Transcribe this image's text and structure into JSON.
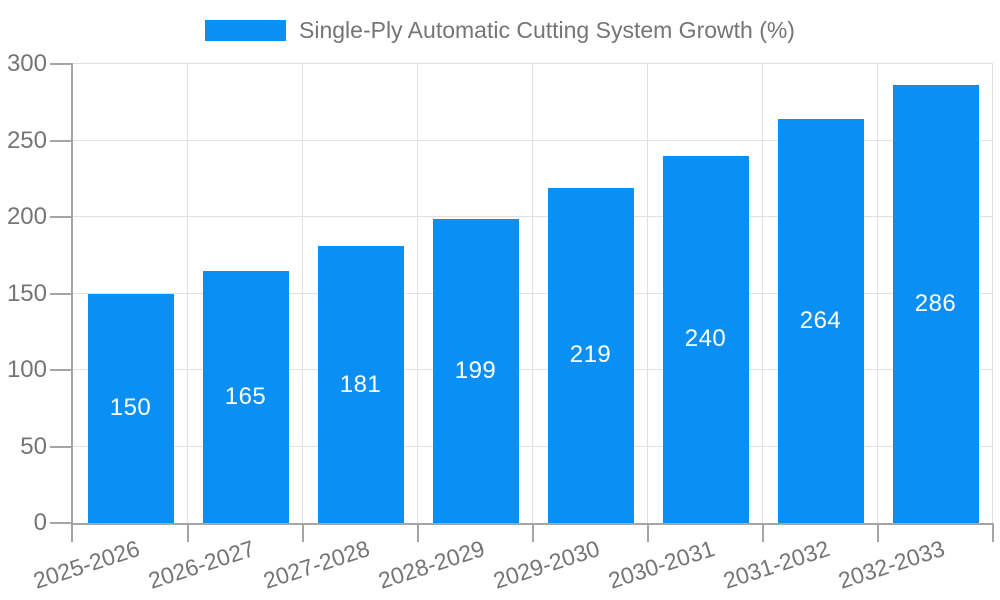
{
  "legend": {
    "label": "Single-Ply Automatic Cutting System Growth (%)"
  },
  "chart_data": {
    "type": "bar",
    "title": "Single-Ply Automatic Cutting System Growth (%)",
    "categories": [
      "2025-2026",
      "2026-2027",
      "2027-2028",
      "2028-2029",
      "2029-2030",
      "2030-2031",
      "2031-2032",
      "2032-2033"
    ],
    "values": [
      150,
      165,
      181,
      199,
      219,
      240,
      264,
      286
    ],
    "value_labels": [
      "150",
      "165",
      "181",
      "199",
      "219",
      "240",
      "264",
      "286"
    ],
    "xlabel": "",
    "ylabel": "",
    "ylim": [
      0,
      300
    ],
    "yticks": [
      0,
      50,
      100,
      150,
      200,
      250,
      300
    ],
    "grid": true,
    "legend_position": "top-center",
    "colors": {
      "bar": "#0a90f5",
      "bar_value_text": "#ffffff",
      "grid_line": "#e1e1e1",
      "axis_line": "#a5a5a5",
      "tick_text": "#757575",
      "legend_text": "#757575",
      "background": "#ffffff"
    }
  }
}
